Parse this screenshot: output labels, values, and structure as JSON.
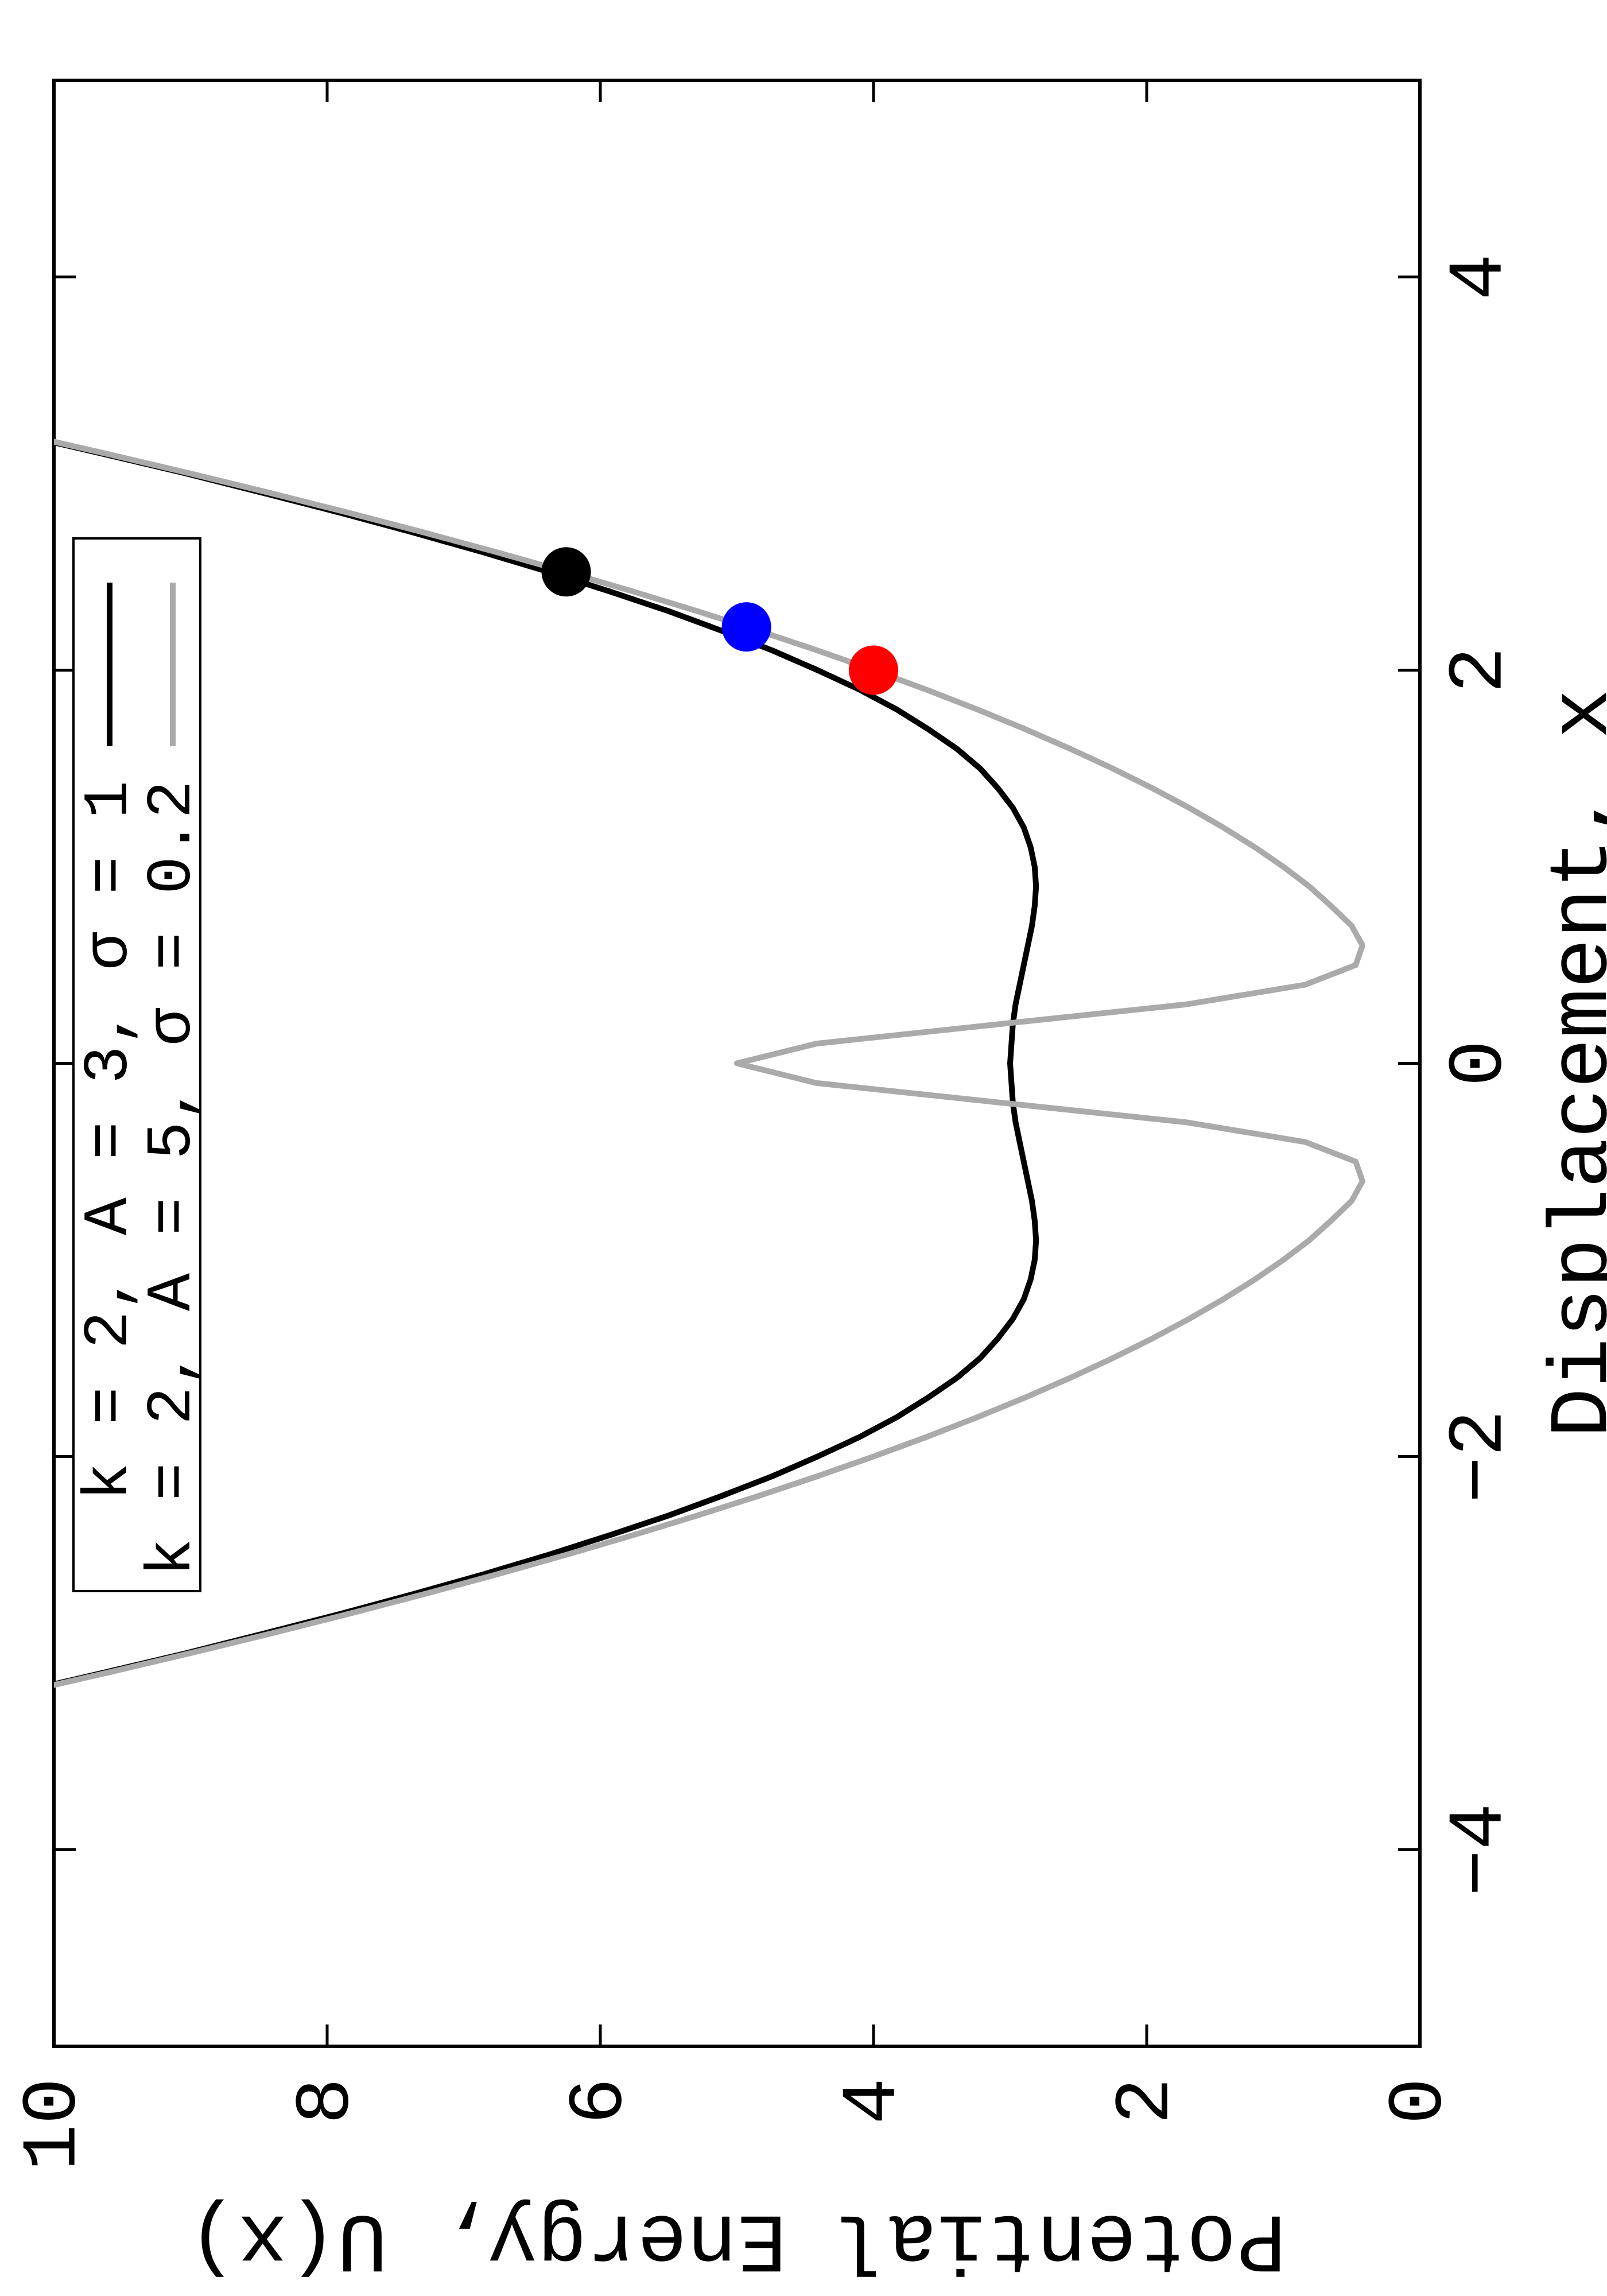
{
  "chart_data": {
    "type": "line",
    "xlabel": "Displacement, x",
    "ylabel": "Potential Energy, U(x)",
    "xlim": [
      -5,
      5
    ],
    "ylim": [
      0,
      10
    ],
    "xticks": [
      {
        "value": -4,
        "label": "−4"
      },
      {
        "value": -2,
        "label": "−2"
      },
      0,
      2,
      4
    ],
    "yticks": [
      0,
      2,
      4,
      6,
      8,
      10
    ],
    "legend": "top center",
    "x": [
      -3.2,
      -3.1,
      -3.0,
      -2.9,
      -2.8,
      -2.7,
      -2.6,
      -2.5,
      -2.4,
      -2.3,
      -2.2,
      -2.1,
      -2.0,
      -1.9,
      -1.8,
      -1.7,
      -1.6,
      -1.5,
      -1.4,
      -1.3,
      -1.2,
      -1.1,
      -1.0,
      -0.9,
      -0.8,
      -0.7,
      -0.6,
      -0.5,
      -0.4,
      -0.3,
      -0.2,
      -0.1,
      0,
      0.1,
      0.2,
      0.3,
      0.4,
      0.5,
      0.6,
      0.7,
      0.8,
      0.9,
      1.0,
      1.1,
      1.2,
      1.3,
      1.4,
      1.5,
      1.6,
      1.7,
      1.8,
      1.9,
      2.0,
      2.1,
      2.2,
      2.3,
      2.4,
      2.5,
      2.6,
      2.7,
      2.8,
      2.9,
      3.0,
      3.1,
      3.2
    ],
    "series": [
      {
        "name": "k = 2, A = 3, σ = 1",
        "color": "#000000",
        "values": [
          10.26,
          9.64,
          9.03,
          8.46,
          7.9,
          7.37,
          6.86,
          6.38,
          5.93,
          5.5,
          5.11,
          4.74,
          4.41,
          4.1,
          3.83,
          3.6,
          3.39,
          3.22,
          3.09,
          2.98,
          2.9,
          2.85,
          2.82,
          2.81,
          2.82,
          2.84,
          2.87,
          2.9,
          2.93,
          2.96,
          2.98,
          2.99,
          3.0,
          2.99,
          2.98,
          2.96,
          2.93,
          2.9,
          2.87,
          2.84,
          2.82,
          2.81,
          2.82,
          2.85,
          2.9,
          2.98,
          3.09,
          3.22,
          3.39,
          3.6,
          3.83,
          4.1,
          4.41,
          4.74,
          5.11,
          5.5,
          5.93,
          6.38,
          6.86,
          7.37,
          7.9,
          8.46,
          9.03,
          9.64,
          10.26
        ]
      },
      {
        "name": "k = 2, A = 5, σ = 0.2",
        "color": "#aaaaaa",
        "values": [
          10.24,
          9.61,
          9.0,
          8.41,
          7.84,
          7.29,
          6.76,
          6.25,
          5.76,
          5.29,
          4.84,
          4.41,
          4.0,
          3.61,
          3.24,
          2.89,
          2.56,
          2.25,
          1.96,
          1.69,
          1.44,
          1.21,
          1.0,
          0.81,
          0.65,
          0.5,
          0.42,
          0.47,
          0.84,
          1.71,
          3.07,
          4.42,
          5.0,
          4.42,
          3.07,
          1.71,
          0.84,
          0.47,
          0.42,
          0.5,
          0.65,
          0.81,
          1.0,
          1.21,
          1.44,
          1.69,
          1.96,
          2.25,
          2.56,
          2.89,
          3.24,
          3.61,
          4.0,
          4.41,
          4.84,
          5.29,
          5.76,
          6.25,
          6.76,
          7.29,
          7.84,
          8.41,
          9.0,
          9.61,
          10.24
        ]
      }
    ],
    "points": {
      "x": [
        2.5,
        2.22,
        2.0
      ],
      "y": [
        6.25,
        4.93,
        4.0
      ],
      "colors": [
        "#000000",
        "#0000ff",
        "#ff0000"
      ]
    }
  }
}
